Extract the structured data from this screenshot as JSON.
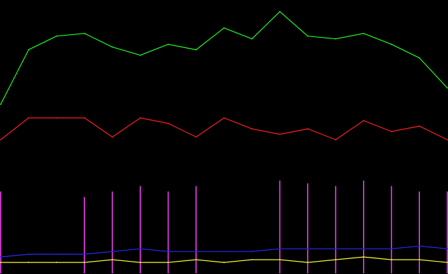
{
  "chart_data": {
    "type": "line",
    "title": "",
    "xlabel": "",
    "ylabel": "",
    "x": [
      0,
      40,
      80,
      120,
      160,
      200,
      240,
      280,
      320,
      360,
      400,
      440,
      480,
      520,
      560,
      600,
      640
    ],
    "ylim": [
      0,
      100
    ],
    "grid": false,
    "legend": "none",
    "series": [
      {
        "color": "#22ff22",
        "style": "line",
        "values": [
          62,
          82,
          87,
          88,
          83,
          80,
          84,
          82,
          90,
          86,
          96,
          87,
          86,
          88,
          84,
          79,
          68
        ]
      },
      {
        "color": "#ff2020",
        "style": "line",
        "values": [
          49,
          57,
          57,
          57,
          50,
          57,
          55,
          50,
          57,
          53,
          51,
          53,
          49,
          56,
          52,
          54,
          49
        ]
      },
      {
        "color": "#ff44ff",
        "style": "spikes",
        "values": [
          30,
          0,
          0,
          28,
          30,
          32,
          30,
          32,
          0,
          0,
          34,
          33,
          32,
          34,
          32,
          30,
          30
        ]
      },
      {
        "color": "#2a2aff",
        "style": "line",
        "values": [
          6,
          7,
          7,
          7,
          8,
          9,
          8,
          8,
          8,
          8,
          9,
          9,
          9,
          9,
          9,
          10,
          9
        ]
      },
      {
        "color": "#ffff33",
        "style": "line",
        "values": [
          4,
          4,
          4,
          4,
          5,
          4,
          4,
          5,
          4,
          5,
          5,
          4,
          5,
          6,
          5,
          5,
          4
        ]
      }
    ]
  }
}
